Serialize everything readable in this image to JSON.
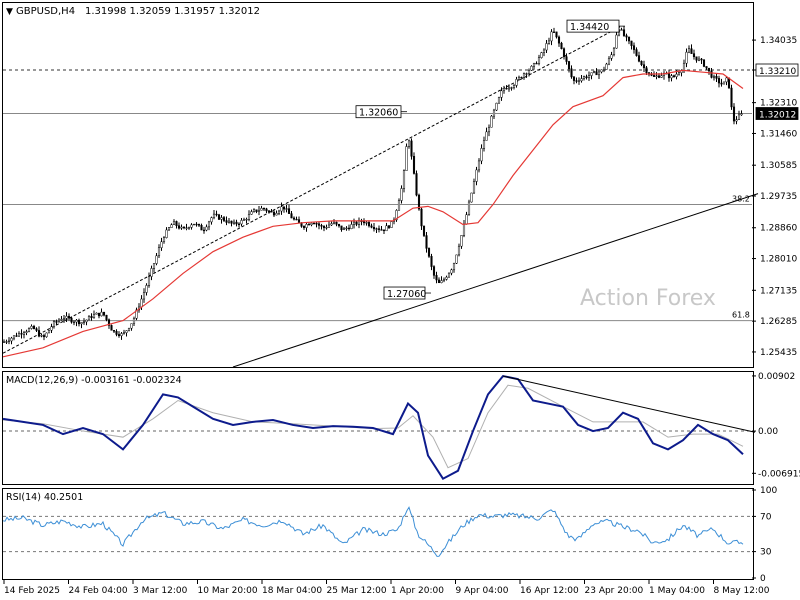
{
  "header": {
    "symbol": "GBPUSD,H4",
    "ohlc": "1.31998 1.32059 1.31957 1.32012"
  },
  "watermark": "Action Forex",
  "colors": {
    "candles": "#000000",
    "ma_line": "#e53935",
    "macd_line": "#0d1b8c",
    "macd_signal": "#b0b0b0",
    "rsi_line": "#3d8fd6",
    "trendline": "#000000",
    "grid": "#333333",
    "watermark": "#c8c8c8"
  },
  "chart_data": [
    {
      "type": "candlestick",
      "title": "GBPUSD,H4",
      "ylim": [
        1.2502,
        1.3503
      ],
      "y_ticks": [
        "1.34035",
        "1.33210",
        "1.32310",
        "1.31460",
        "1.30585",
        "1.29735",
        "1.28860",
        "1.28010",
        "1.27135",
        "1.26285",
        "1.25435"
      ],
      "x_labels": [
        "14 Feb 2025",
        "24 Feb 04:00",
        "3 Mar 12:00",
        "10 Mar 20:00",
        "18 Mar 04:00",
        "25 Mar 12:00",
        "1 Apr 20:00",
        "9 Apr 04:00",
        "16 Apr 12:00",
        "23 Apr 20:00",
        "1 May 04:00",
        "8 May 12:00"
      ],
      "price_path": [
        [
          0,
          1.257
        ],
        [
          10,
          1.2585
        ],
        [
          20,
          1.26
        ],
        [
          30,
          1.261
        ],
        [
          40,
          1.258
        ],
        [
          50,
          1.262
        ],
        [
          60,
          1.264
        ],
        [
          70,
          1.263
        ],
        [
          80,
          1.2625
        ],
        [
          90,
          1.2645
        ],
        [
          100,
          1.265
        ],
        [
          110,
          1.26
        ],
        [
          120,
          1.259
        ],
        [
          130,
          1.263
        ],
        [
          140,
          1.27
        ],
        [
          150,
          1.278
        ],
        [
          160,
          1.286
        ],
        [
          170,
          1.29
        ],
        [
          180,
          1.288
        ],
        [
          190,
          1.29
        ],
        [
          200,
          1.288
        ],
        [
          210,
          1.292
        ],
        [
          220,
          1.291
        ],
        [
          230,
          1.2895
        ],
        [
          240,
          1.2905
        ],
        [
          250,
          1.293
        ],
        [
          260,
          1.294
        ],
        [
          270,
          1.2925
        ],
        [
          280,
          1.2945
        ],
        [
          290,
          1.291
        ],
        [
          300,
          1.289
        ],
        [
          310,
          1.2905
        ],
        [
          320,
          1.2885
        ],
        [
          330,
          1.29
        ],
        [
          340,
          1.288
        ],
        [
          350,
          1.2895
        ],
        [
          360,
          1.2905
        ],
        [
          370,
          1.289
        ],
        [
          380,
          1.288
        ],
        [
          390,
          1.29
        ],
        [
          400,
          1.301
        ],
        [
          405,
          1.315
        ],
        [
          410,
          1.305
        ],
        [
          415,
          1.295
        ],
        [
          420,
          1.287
        ],
        [
          430,
          1.276
        ],
        [
          435,
          1.273
        ],
        [
          440,
          1.274
        ],
        [
          450,
          1.278
        ],
        [
          460,
          1.288
        ],
        [
          470,
          1.3
        ],
        [
          480,
          1.312
        ],
        [
          490,
          1.32
        ],
        [
          500,
          1.327
        ],
        [
          510,
          1.328
        ],
        [
          520,
          1.331
        ],
        [
          530,
          1.333
        ],
        [
          540,
          1.337
        ],
        [
          550,
          1.343
        ],
        [
          560,
          1.337
        ],
        [
          570,
          1.329
        ],
        [
          580,
          1.33
        ],
        [
          590,
          1.331
        ],
        [
          600,
          1.332
        ],
        [
          610,
          1.337
        ],
        [
          615,
          1.3442
        ],
        [
          620,
          1.342
        ],
        [
          630,
          1.338
        ],
        [
          640,
          1.333
        ],
        [
          650,
          1.33
        ],
        [
          660,
          1.331
        ],
        [
          670,
          1.33
        ],
        [
          680,
          1.333
        ],
        [
          685,
          1.338
        ],
        [
          690,
          1.336
        ],
        [
          700,
          1.334
        ],
        [
          710,
          1.33
        ],
        [
          720,
          1.328
        ],
        [
          725,
          1.33
        ],
        [
          730,
          1.318
        ],
        [
          735,
          1.319
        ],
        [
          740,
          1.3201
        ]
      ],
      "series": [
        {
          "name": "MA",
          "values": [
            [
              0,
              1.253
            ],
            [
              40,
              1.2555
            ],
            [
              80,
              1.26
            ],
            [
              120,
              1.263
            ],
            [
              150,
              1.269
            ],
            [
              180,
              1.276
            ],
            [
              210,
              1.282
            ],
            [
              240,
              1.286
            ],
            [
              270,
              1.289
            ],
            [
              300,
              1.29
            ],
            [
              330,
              1.2905
            ],
            [
              360,
              1.2905
            ],
            [
              390,
              1.2905
            ],
            [
              410,
              1.294
            ],
            [
              425,
              1.2945
            ],
            [
              440,
              1.293
            ],
            [
              460,
              1.2895
            ],
            [
              475,
              1.29
            ],
            [
              490,
              1.295
            ],
            [
              510,
              1.303
            ],
            [
              530,
              1.31
            ],
            [
              550,
              1.317
            ],
            [
              570,
              1.322
            ],
            [
              600,
              1.325
            ],
            [
              620,
              1.33
            ],
            [
              640,
              1.331
            ],
            [
              660,
              1.331
            ],
            [
              680,
              1.332
            ],
            [
              700,
              1.3315
            ],
            [
              720,
              1.331
            ],
            [
              740,
              1.327
            ]
          ]
        }
      ],
      "annotations": [
        {
          "label": "1.34420",
          "price": 1.3442
        },
        {
          "label": "1.32060",
          "price": 1.3206
        },
        {
          "label": "1.27060",
          "price": 1.2706
        }
      ],
      "horizontal_lines": [
        {
          "price": 1.3321,
          "style": "dashed",
          "label": "1.33210"
        },
        {
          "price": 1.3201,
          "style": "solid",
          "label": "1.32012"
        },
        {
          "price": 1.295,
          "style": "solid",
          "label": "38.2"
        },
        {
          "price": 1.263,
          "style": "solid",
          "label": "61.8"
        }
      ],
      "trendlines": [
        {
          "style": "solid",
          "from": [
            230,
            1.2502
          ],
          "to": [
            755,
            1.298
          ]
        },
        {
          "style": "dashed",
          "from": [
            0,
            1.254
          ],
          "to": [
            617,
            1.344
          ]
        }
      ],
      "current_price_label": "1.32012",
      "line_label_33210": "1.33210"
    },
    {
      "type": "line",
      "title": "MACD(12,26,9) -0.003161 -0.002324",
      "ylim": [
        -0.0085,
        0.0095
      ],
      "y_ticks": [
        "0.00902",
        "0.00",
        "-0.006915"
      ],
      "series": [
        {
          "name": "MACD",
          "values": [
            [
              0,
              0.002
            ],
            [
              20,
              0.0015
            ],
            [
              40,
              0.001
            ],
            [
              60,
              -0.0005
            ],
            [
              80,
              0.0005
            ],
            [
              100,
              -0.0005
            ],
            [
              120,
              -0.003
            ],
            [
              140,
              0.001
            ],
            [
              160,
              0.006
            ],
            [
              175,
              0.0055
            ],
            [
              190,
              0.004
            ],
            [
              210,
              0.002
            ],
            [
              230,
              0.001
            ],
            [
              250,
              0.0015
            ],
            [
              270,
              0.0018
            ],
            [
              290,
              0.001
            ],
            [
              310,
              0.0005
            ],
            [
              330,
              0.0008
            ],
            [
              350,
              0.0007
            ],
            [
              370,
              0.0005
            ],
            [
              390,
              -0.0005
            ],
            [
              405,
              0.0045
            ],
            [
              415,
              0.003
            ],
            [
              425,
              -0.004
            ],
            [
              440,
              -0.0078
            ],
            [
              455,
              -0.0065
            ],
            [
              470,
              0.0
            ],
            [
              485,
              0.006
            ],
            [
              500,
              0.009
            ],
            [
              515,
              0.0085
            ],
            [
              530,
              0.005
            ],
            [
              545,
              0.0045
            ],
            [
              560,
              0.004
            ],
            [
              575,
              0.001
            ],
            [
              590,
              0.0
            ],
            [
              605,
              0.0005
            ],
            [
              620,
              0.003
            ],
            [
              635,
              0.002
            ],
            [
              650,
              -0.002
            ],
            [
              665,
              -0.003
            ],
            [
              680,
              -0.0015
            ],
            [
              695,
              0.001
            ],
            [
              710,
              -0.0005
            ],
            [
              725,
              -0.0015
            ],
            [
              740,
              -0.0038
            ]
          ]
        },
        {
          "name": "Signal",
          "values": [
            [
              0,
              0.0018
            ],
            [
              40,
              0.0012
            ],
            [
              80,
              0.0
            ],
            [
              120,
              -0.001
            ],
            [
              150,
              0.002
            ],
            [
              175,
              0.005
            ],
            [
              210,
              0.003
            ],
            [
              250,
              0.0015
            ],
            [
              290,
              0.0012
            ],
            [
              330,
              0.0008
            ],
            [
              370,
              0.0004
            ],
            [
              395,
              0.0005
            ],
            [
              410,
              0.0025
            ],
            [
              430,
              -0.001
            ],
            [
              445,
              -0.006
            ],
            [
              465,
              -0.0045
            ],
            [
              485,
              0.003
            ],
            [
              505,
              0.0075
            ],
            [
              525,
              0.007
            ],
            [
              560,
              0.004
            ],
            [
              590,
              0.0015
            ],
            [
              615,
              0.0015
            ],
            [
              640,
              0.0015
            ],
            [
              665,
              -0.001
            ],
            [
              690,
              -0.0005
            ],
            [
              715,
              -0.0005
            ],
            [
              740,
              -0.0025
            ]
          ]
        }
      ],
      "trendline": {
        "style": "solid",
        "from": [
          500,
          0.009
        ],
        "to": [
          752,
          -0.0002
        ]
      },
      "zero_line_label": "0.00"
    },
    {
      "type": "line",
      "title": "RSI(14) 40.2501",
      "ylim": [
        0,
        100
      ],
      "y_ticks": [
        "100",
        "70",
        "30",
        "0"
      ],
      "levels": [
        70,
        30
      ],
      "series": [
        {
          "name": "RSI",
          "values": [
            [
              0,
              66
            ],
            [
              20,
              68
            ],
            [
              40,
              60
            ],
            [
              60,
              65
            ],
            [
              80,
              58
            ],
            [
              100,
              62
            ],
            [
              120,
              38
            ],
            [
              140,
              66
            ],
            [
              160,
              74
            ],
            [
              180,
              62
            ],
            [
              200,
              64
            ],
            [
              220,
              56
            ],
            [
              240,
              66
            ],
            [
              260,
              60
            ],
            [
              280,
              66
            ],
            [
              300,
              50
            ],
            [
              320,
              60
            ],
            [
              340,
              38
            ],
            [
              360,
              55
            ],
            [
              380,
              50
            ],
            [
              395,
              55
            ],
            [
              405,
              82
            ],
            [
              415,
              50
            ],
            [
              425,
              38
            ],
            [
              435,
              26
            ],
            [
              445,
              40
            ],
            [
              460,
              60
            ],
            [
              475,
              72
            ],
            [
              490,
              70
            ],
            [
              505,
              72
            ],
            [
              520,
              70
            ],
            [
              535,
              68
            ],
            [
              550,
              78
            ],
            [
              565,
              48
            ],
            [
              575,
              44
            ],
            [
              590,
              62
            ],
            [
              605,
              64
            ],
            [
              620,
              58
            ],
            [
              635,
              54
            ],
            [
              650,
              40
            ],
            [
              665,
              44
            ],
            [
              680,
              60
            ],
            [
              695,
              48
            ],
            [
              710,
              56
            ],
            [
              725,
              40
            ],
            [
              740,
              40.25
            ]
          ]
        }
      ]
    }
  ]
}
